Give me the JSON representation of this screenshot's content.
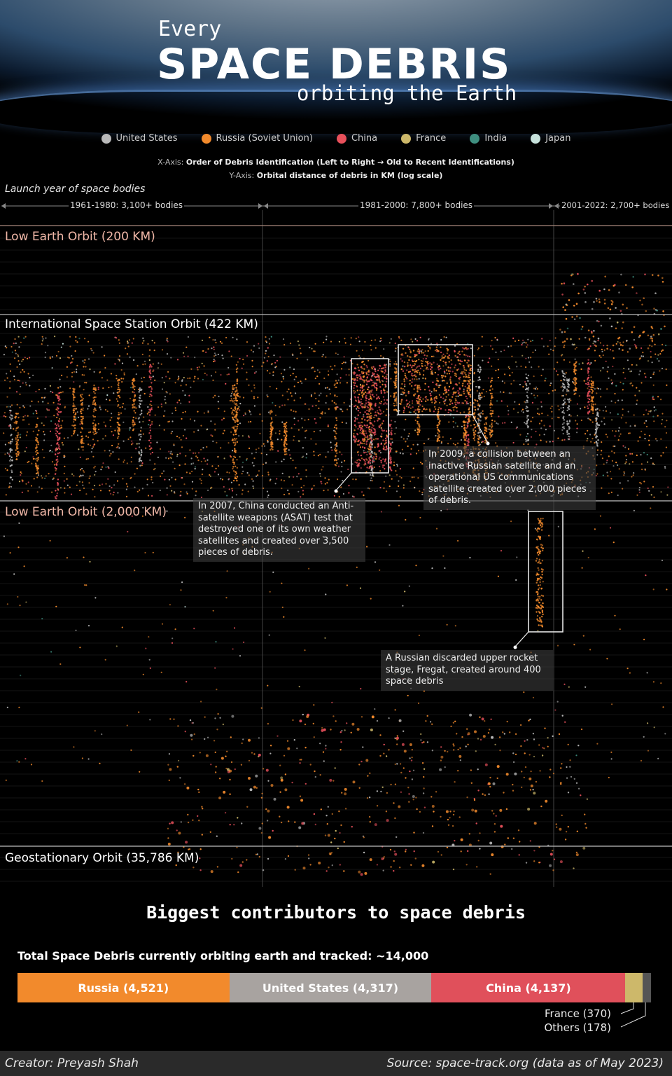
{
  "header": {
    "line1": "Every",
    "line2": "SPACE DEBRIS",
    "line3": "orbiting the Earth"
  },
  "legend": [
    {
      "name": "United States",
      "color": "#b9b9b9"
    },
    {
      "name": "Russia (Soviet Union)",
      "color": "#f28a2c"
    },
    {
      "name": "China",
      "color": "#e8505b"
    },
    {
      "name": "France",
      "color": "#cdb86a"
    },
    {
      "name": "India",
      "color": "#3f8f80"
    },
    {
      "name": "Japan",
      "color": "#c7e2dc"
    }
  ],
  "axes": {
    "x_prefix": "X-Axis: ",
    "x_text": "Order of Debris Identification (Left to Right → Old to Recent Identifications)",
    "y_prefix": "Y-Axis: ",
    "y_text": "Orbital distance of debris in KM (log scale)"
  },
  "launch_label": "Launch year of space bodies",
  "eras": [
    "1961-1980: 3,100+ bodies",
    "1981-2000: 7,800+ bodies",
    "2001-2022: 2,700+ bodies"
  ],
  "orbits": [
    {
      "label": "Low Earth Orbit (200 KM)",
      "color": "#f1b8a8"
    },
    {
      "label": "International Space Station Orbit (422 KM)",
      "color": "#ffffff"
    },
    {
      "label": "Low Earth Orbit (2,000 KM)",
      "color": "#f1b8a8"
    },
    {
      "label": "Geostationary Orbit (35,786 KM)",
      "color": "#ffffff"
    }
  ],
  "annotations": {
    "china": "In 2007, China conducted an Anti-satellite weapons (ASAT) test that destroyed one of its own weather satellites and created over 3,500 pieces of debris.",
    "collision": "In 2009, a collision between an inactive Russian satellite and an operational US communications satellite created over 2,000 pieces of debris.",
    "fregat": "A Russian discarded upper rocket stage, Fregat, created around 400 space debris"
  },
  "contributors": {
    "title": "Biggest contributors to space debris",
    "total_label": "Total Space Debris currently orbiting earth and tracked:  ~14,000"
  },
  "chart_data": [
    {
      "type": "scatter",
      "title": "Every SPACE DEBRIS orbiting the Earth",
      "xlabel": "Order of Debris Identification (Left to Right → Old to Recent Identifications)",
      "ylabel": "Orbital distance of debris in KM (log scale)",
      "y_scale": "log",
      "reference_lines_km": [
        200,
        422,
        2000,
        35786
      ],
      "periods": [
        {
          "label": "1961-1980",
          "bodies": "3,100+"
        },
        {
          "label": "1981-2000",
          "bodies": "7,800+"
        },
        {
          "label": "2001-2022",
          "bodies": "2,700+"
        }
      ],
      "grid": false,
      "legend_position": "top-center"
    },
    {
      "type": "bar",
      "title": "Total Space Debris currently orbiting earth and tracked:  ~14,000",
      "orientation": "horizontal-stacked",
      "categories": [
        "Russia",
        "United States",
        "China",
        "France",
        "Others"
      ],
      "values": [
        4521,
        4317,
        4137,
        370,
        178
      ],
      "labels": [
        "Russia (4,521)",
        "United States (4,317)",
        "China (4,137)",
        "France (370)",
        "Others (178)"
      ],
      "colors": [
        "#f28a2c",
        "#a8a3a0",
        "#e0505b",
        "#cdb86a",
        "#555555"
      ]
    }
  ],
  "footer": {
    "creator": "Creator: Preyash Shah",
    "source": "Source: space-track.org (data as of May 2023)"
  }
}
